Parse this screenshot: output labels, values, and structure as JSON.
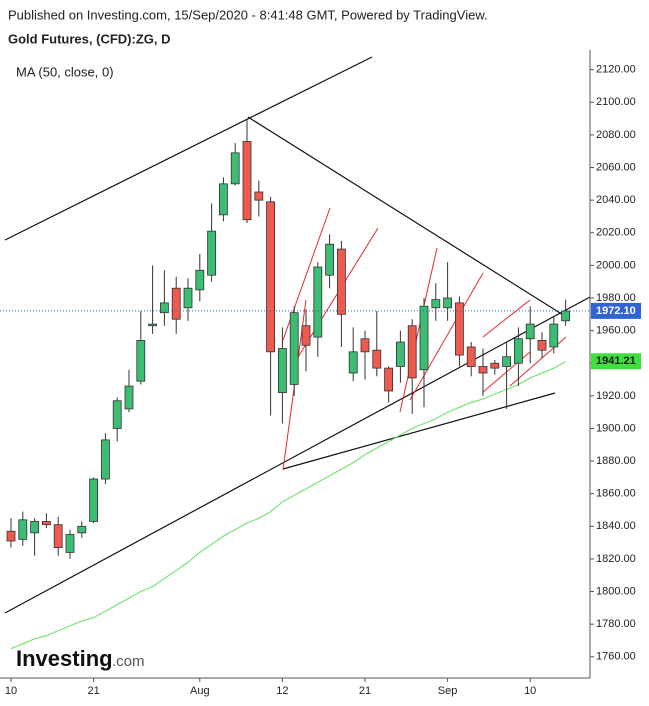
{
  "chart_data": {
    "type": "candlestick",
    "header": "Published on Investing.com, 15/Sep/2020 - 8:41:48 GMT, Powered by TradingView.",
    "title": "Gold Futures, (CFD):ZG, D",
    "logo": {
      "main": "Investing",
      "suffix": ".com"
    },
    "categories": [
      "10",
      null,
      null,
      null,
      null,
      null,
      null,
      "21",
      null,
      null,
      null,
      null,
      null,
      null,
      null,
      null,
      "Aug",
      null,
      null,
      null,
      null,
      null,
      null,
      "12",
      null,
      null,
      null,
      null,
      null,
      null,
      "21",
      null,
      null,
      null,
      null,
      null,
      null,
      "Sep",
      null,
      null,
      null,
      null,
      null,
      null,
      "10",
      null,
      null,
      null
    ],
    "ohlc": {
      "up_color": "#3dbd74",
      "down_color": "#ef5a4f",
      "open": [
        1837,
        1832,
        1836,
        1843,
        1841,
        1824,
        1836,
        1843,
        1869,
        1900,
        1912,
        1929,
        1963,
        1971,
        1986,
        1974,
        1985,
        1994,
        2031,
        2050,
        2076,
        2045,
        2039,
        1922,
        1927,
        1963,
        1956,
        1994,
        2010,
        1934,
        1955,
        1948,
        1937,
        1938,
        1963,
        1936,
        1974,
        1974,
        1977,
        1950,
        1938,
        1940,
        1938,
        1940,
        1955,
        1954,
        1950,
        1966
      ],
      "high": [
        1845,
        1849,
        1845,
        1848,
        1846,
        1838,
        1843,
        1870,
        1897,
        1919,
        1936,
        1972,
        2000,
        1997,
        1993,
        1992,
        2007,
        2038,
        2054,
        2075,
        2089,
        2052,
        2042,
        1962,
        1975,
        1973,
        2002,
        2019,
        2015,
        1962,
        1960,
        1972,
        1938,
        1960,
        1967,
        1980,
        1989,
        2002,
        1981,
        1953,
        1949,
        1942,
        1953,
        1962,
        1975,
        1959,
        1969,
        1979
      ],
      "low": [
        1827,
        1828,
        1822,
        1839,
        1822,
        1820,
        1833,
        1842,
        1866,
        1892,
        1910,
        1927,
        1958,
        1963,
        1958,
        1966,
        1978,
        1990,
        2027,
        2049,
        2026,
        2030,
        1908,
        1903,
        1920,
        1935,
        1944,
        1986,
        1950,
        1929,
        1930,
        1932,
        1916,
        1928,
        1909,
        1913,
        1966,
        1966,
        1938,
        1932,
        1920,
        1933,
        1912,
        1926,
        1940,
        1943,
        1946,
        1963
      ],
      "close": [
        1831,
        1844,
        1843,
        1841,
        1827,
        1835,
        1840,
        1869,
        1893,
        1917,
        1926,
        1954,
        1964,
        1977,
        1967,
        1986,
        1997,
        2021,
        2050,
        2069,
        2028,
        2040,
        1947,
        1949,
        1971,
        1951,
        1999,
        2013,
        1970,
        1947,
        1947,
        1937,
        1923,
        1953,
        1931,
        1975,
        1979,
        1980,
        1945,
        1938,
        1934,
        1937,
        1944,
        1955,
        1964,
        1948,
        1964,
        1972
      ]
    },
    "ma": {
      "name": "MA (50, close, 0)",
      "color": "#5fe35f",
      "values": [
        1765,
        1768,
        1771,
        1773,
        1776,
        1779,
        1782,
        1784,
        1788,
        1792,
        1796,
        1800,
        1803,
        1808,
        1813,
        1818,
        1824,
        1829,
        1834,
        1838,
        1842,
        1845,
        1849,
        1855,
        1859,
        1863,
        1867,
        1871,
        1875,
        1879,
        1884,
        1888,
        1892,
        1896,
        1900,
        1903,
        1906,
        1910,
        1913,
        1916,
        1918,
        1921,
        1924,
        1927,
        1931,
        1934,
        1937,
        1941
      ],
      "last": {
        "value": 1941.21,
        "label": "1941.21"
      }
    },
    "last_price": {
      "value": 1972.1,
      "label": "1972.10",
      "color": "#2f63d6"
    },
    "ylim": [
      1747,
      2129
    ],
    "yticks": [
      {
        "value": 1760,
        "label": "1760.00"
      },
      {
        "value": 1780,
        "label": "1780.00"
      },
      {
        "value": 1800,
        "label": "1800.00"
      },
      {
        "value": 1820,
        "label": "1820.00"
      },
      {
        "value": 1840,
        "label": "1840.00"
      },
      {
        "value": 1860,
        "label": "1860.00"
      },
      {
        "value": 1880,
        "label": "1880.00"
      },
      {
        "value": 1900,
        "label": "1900.00"
      },
      {
        "value": 1920,
        "label": "1920.00"
      },
      {
        "value": 1940,
        "label": "1940.00"
      },
      {
        "value": 1960,
        "label": "1960.00"
      },
      {
        "value": 1980,
        "label": "1980.00"
      },
      {
        "value": 2000,
        "label": "2000.00"
      },
      {
        "value": 2020,
        "label": "2020.00"
      },
      {
        "value": 2040,
        "label": "2040.00"
      },
      {
        "value": 2060,
        "label": "2060.00"
      },
      {
        "value": 2080,
        "label": "2080.00"
      },
      {
        "value": 2100,
        "label": "2100.00"
      },
      {
        "value": 2120,
        "label": "2120.00"
      }
    ]
  }
}
